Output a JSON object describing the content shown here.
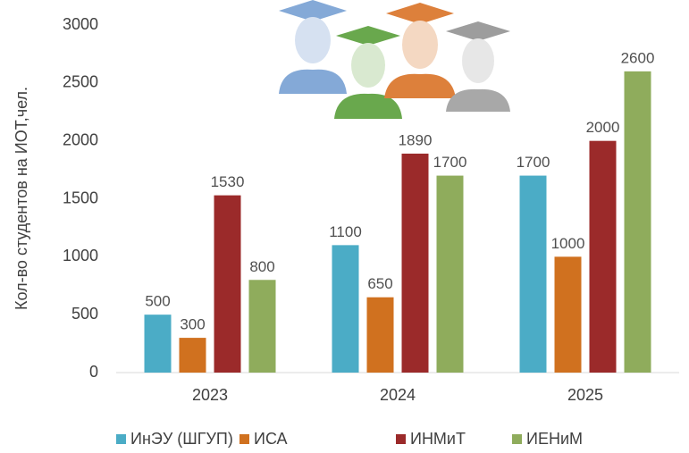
{
  "chart_data": {
    "type": "bar",
    "y_label": "Кол-во студентов на ИОТ,чел.",
    "categories": [
      "2023",
      "2024",
      "2025"
    ],
    "series": [
      {
        "name": "ИнЭУ (ШГУП)",
        "color": "#4bacc6",
        "values": [
          500,
          1100,
          1700
        ]
      },
      {
        "name": "ИСА",
        "color": "#d0711f",
        "values": [
          300,
          650,
          1000
        ]
      },
      {
        "name": "ИНМиТ",
        "color": "#9b2a2a",
        "values": [
          1530,
          1890,
          2000
        ]
      },
      {
        "name": "ИЕНиМ",
        "color": "#8fac5c",
        "values": [
          800,
          1700,
          2600
        ]
      }
    ],
    "ylim": [
      0,
      3000
    ],
    "yticks": [
      0,
      500,
      1000,
      1500,
      2000,
      2500,
      3000
    ],
    "grid": false,
    "legend": "bottom"
  }
}
